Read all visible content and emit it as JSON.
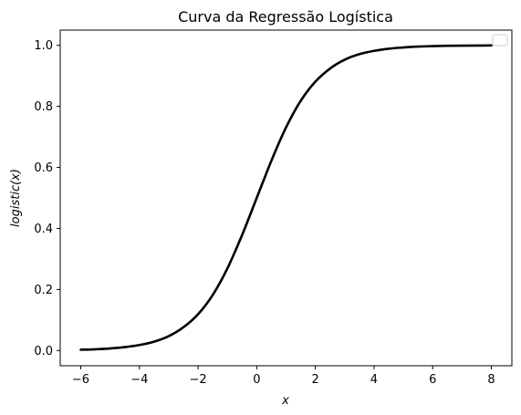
{
  "chart_data": {
    "type": "line",
    "title": "Curva da Regressão Logística",
    "xlabel": "x",
    "ylabel": "logistic(x)",
    "xlim": [
      -6.7,
      8.7
    ],
    "ylim": [
      -0.05,
      1.05
    ],
    "xticks": [
      -6,
      -4,
      -2,
      0,
      2,
      4,
      6,
      8
    ],
    "yticks": [
      0.0,
      0.2,
      0.4,
      0.6,
      0.8,
      1.0
    ],
    "xtick_labels": [
      "−6",
      "−4",
      "−2",
      "0",
      "2",
      "4",
      "6",
      "8"
    ],
    "ytick_labels": [
      "0.0",
      "0.2",
      "0.4",
      "0.6",
      "0.8",
      "1.0"
    ],
    "grid": false,
    "legend": {
      "position": "top-right",
      "entries": []
    },
    "series": [
      {
        "color": "#000000",
        "x": [
          -6,
          -5.5,
          -5,
          -4.5,
          -4,
          -3.5,
          -3,
          -2.5,
          -2,
          -1.5,
          -1,
          -0.5,
          0,
          0.5,
          1,
          1.5,
          2,
          2.5,
          3,
          3.5,
          4,
          4.5,
          5,
          5.5,
          6,
          6.5,
          7,
          7.5,
          8
        ],
        "y": [
          0.0025,
          0.0041,
          0.0067,
          0.011,
          0.018,
          0.029,
          0.047,
          0.076,
          0.119,
          0.182,
          0.269,
          0.378,
          0.5,
          0.622,
          0.731,
          0.818,
          0.881,
          0.924,
          0.953,
          0.971,
          0.982,
          0.989,
          0.993,
          0.996,
          0.9975,
          0.9985,
          0.9991,
          0.9994,
          0.9997
        ]
      }
    ]
  }
}
